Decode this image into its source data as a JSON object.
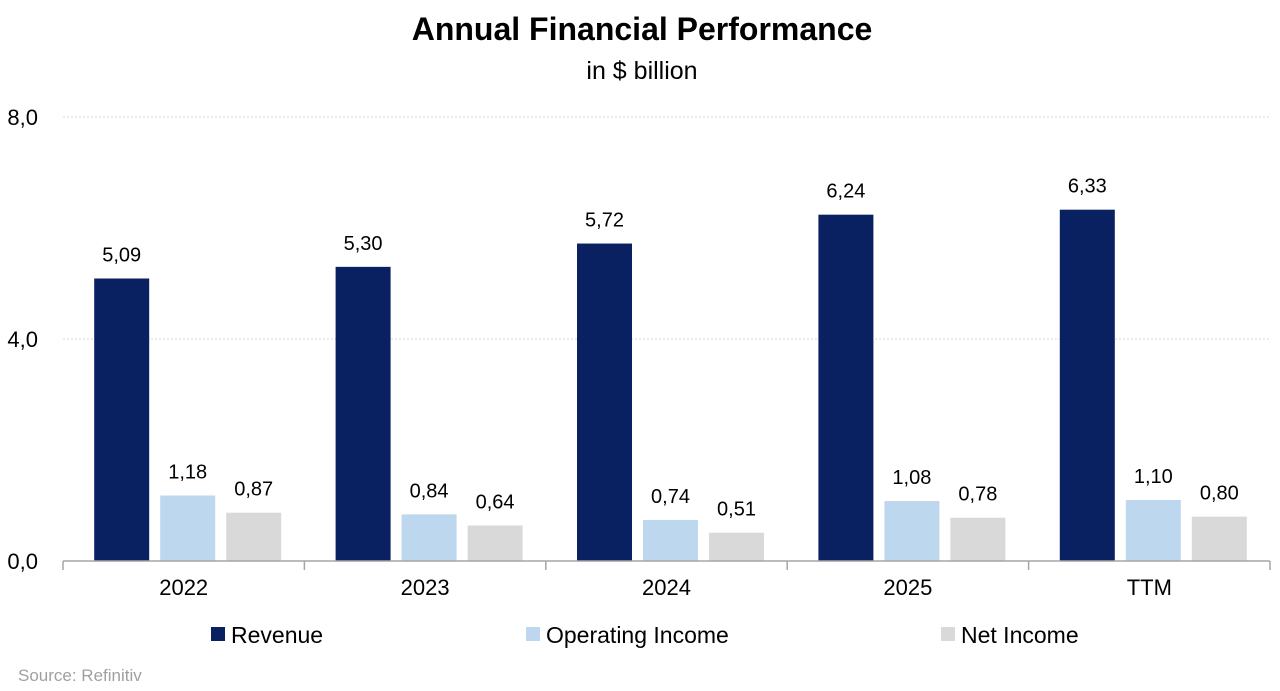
{
  "chart_data": {
    "type": "bar",
    "title": "Annual Financial Performance",
    "subtitle": "in $ billion",
    "categories": [
      "2022",
      "2023",
      "2024",
      "2025",
      "TTM"
    ],
    "series": [
      {
        "name": "Revenue",
        "color": "#0a2161",
        "values": [
          5.09,
          5.3,
          5.72,
          6.24,
          6.33
        ],
        "labels": [
          "5,09",
          "5,30",
          "5,72",
          "6,24",
          "6,33"
        ]
      },
      {
        "name": "Operating Income",
        "color": "#bdd7ee",
        "values": [
          1.18,
          0.84,
          0.74,
          1.08,
          1.1
        ],
        "labels": [
          "1,18",
          "0,84",
          "0,74",
          "1,08",
          "1,10"
        ]
      },
      {
        "name": "Net Income",
        "color": "#d9d9d9",
        "values": [
          0.87,
          0.64,
          0.51,
          0.78,
          0.8
        ],
        "labels": [
          "0,87",
          "0,64",
          "0,51",
          "0,78",
          "0,80"
        ]
      }
    ],
    "ylim": [
      0,
      8
    ],
    "yticks": [
      0,
      4,
      8
    ],
    "ytick_labels": [
      "0,0",
      "4,0",
      "8,0"
    ],
    "grid": true,
    "legend": "bottom",
    "xlabel": "",
    "ylabel": ""
  },
  "source": "Source: Refinitiv",
  "colors": {
    "gridline": "#d9d9d9",
    "axis": "#a6a6a6",
    "source_text": "#a0a0a0"
  }
}
